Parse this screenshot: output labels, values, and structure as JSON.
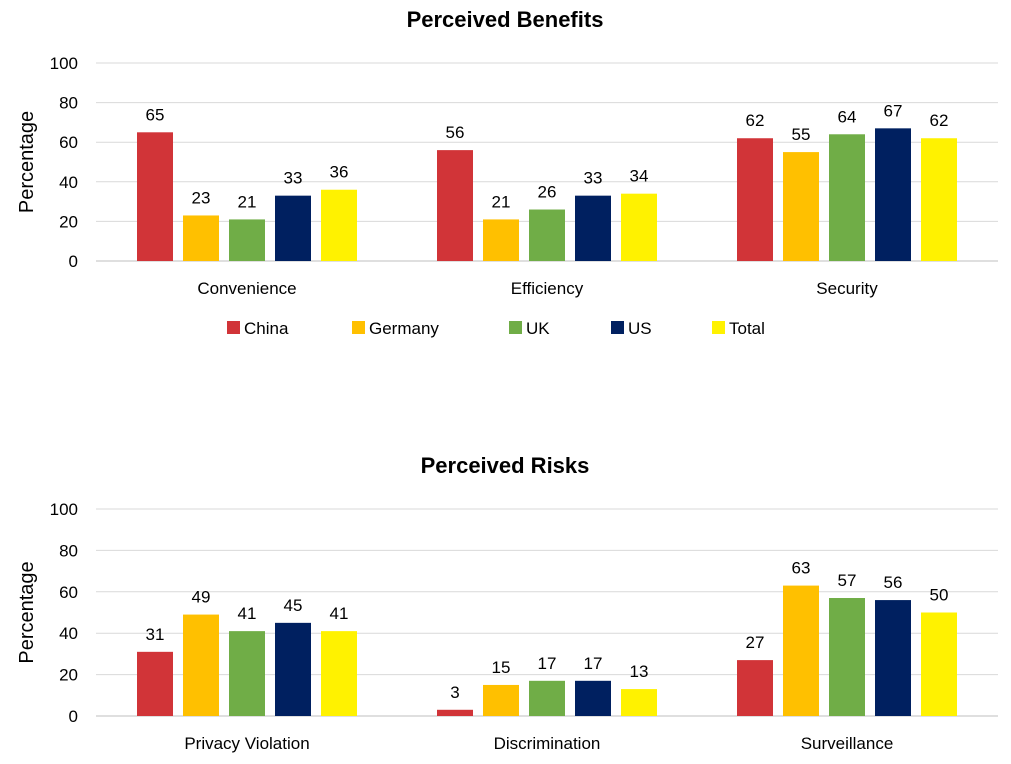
{
  "chart_data": [
    {
      "type": "bar",
      "title": "Perceived Benefits",
      "ylabel": "Percentage",
      "xlabel": "",
      "ylim": [
        0,
        100
      ],
      "yticks": [
        0,
        20,
        40,
        60,
        80,
        100
      ],
      "categories": [
        "Convenience",
        "Efficiency",
        "Security"
      ],
      "series": [
        {
          "name": "China",
          "color": "#D13438",
          "values": [
            65,
            56,
            62
          ]
        },
        {
          "name": "Germany",
          "color": "#FFC000",
          "values": [
            23,
            21,
            55
          ]
        },
        {
          "name": "UK",
          "color": "#70AD47",
          "values": [
            21,
            26,
            64
          ]
        },
        {
          "name": "US",
          "color": "#002060",
          "values": [
            33,
            33,
            67
          ]
        },
        {
          "name": "Total",
          "color": "#FFF200",
          "values": [
            36,
            34,
            62
          ]
        }
      ],
      "grid": true,
      "legend": "bottom"
    },
    {
      "type": "bar",
      "title": "Perceived Risks",
      "ylabel": "Percentage",
      "xlabel": "",
      "ylim": [
        0,
        100
      ],
      "yticks": [
        0,
        20,
        40,
        60,
        80,
        100
      ],
      "categories": [
        "Privacy Violation",
        "Discrimination",
        "Surveillance"
      ],
      "series": [
        {
          "name": "China",
          "color": "#D13438",
          "values": [
            31,
            3,
            27
          ]
        },
        {
          "name": "Germany",
          "color": "#FFC000",
          "values": [
            49,
            15,
            63
          ]
        },
        {
          "name": "UK",
          "color": "#70AD47",
          "values": [
            41,
            17,
            57
          ]
        },
        {
          "name": "US",
          "color": "#002060",
          "values": [
            45,
            17,
            56
          ]
        },
        {
          "name": "Total",
          "color": "#FFF200",
          "values": [
            41,
            13,
            50
          ]
        }
      ],
      "grid": true,
      "legend": "none"
    }
  ]
}
